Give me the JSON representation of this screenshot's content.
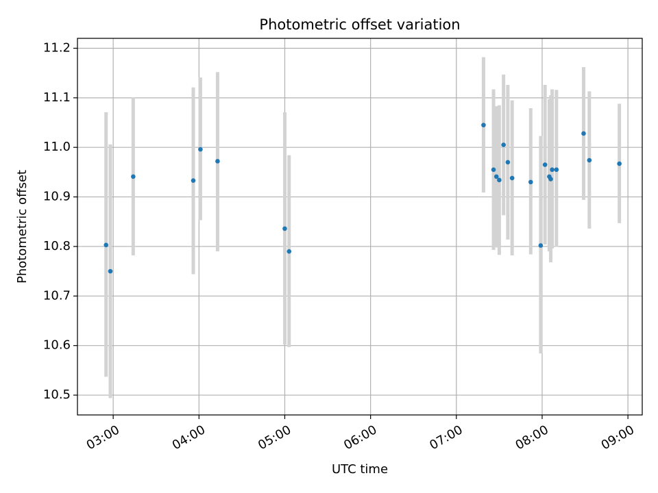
{
  "chart_data": {
    "type": "scatter",
    "title": "Photometric offset variation",
    "xlabel": "UTC time",
    "ylabel": "Photometric offset",
    "x_unit": "UTC time (HH:MM)",
    "xlim": [
      "02:35",
      "09:10"
    ],
    "ylim": [
      10.46,
      11.22
    ],
    "xticks": [
      "03:00",
      "04:00",
      "05:00",
      "06:00",
      "07:00",
      "08:00",
      "09:00"
    ],
    "yticks": [
      "10.5",
      "10.6",
      "10.7",
      "10.8",
      "10.9",
      "11.0",
      "11.1",
      "11.2"
    ],
    "grid": true,
    "point_color": "#1f77b4",
    "errorbar_color": "#d3d3d3",
    "points": [
      {
        "x": "02:55",
        "y": 10.803,
        "ymin": 10.537,
        "ymax": 11.071
      },
      {
        "x": "02:58",
        "y": 10.75,
        "ymin": 10.494,
        "ymax": 11.006
      },
      {
        "x": "03:14",
        "y": 10.941,
        "ymin": 10.782,
        "ymax": 11.101
      },
      {
        "x": "03:56",
        "y": 10.933,
        "ymin": 10.744,
        "ymax": 11.121
      },
      {
        "x": "04:01",
        "y": 10.996,
        "ymin": 10.853,
        "ymax": 11.141
      },
      {
        "x": "04:13",
        "y": 10.972,
        "ymin": 10.79,
        "ymax": 11.152
      },
      {
        "x": "05:00",
        "y": 10.836,
        "ymin": 10.602,
        "ymax": 11.071
      },
      {
        "x": "05:03",
        "y": 10.79,
        "ymin": 10.597,
        "ymax": 10.984
      },
      {
        "x": "07:19",
        "y": 11.045,
        "ymin": 10.909,
        "ymax": 11.182
      },
      {
        "x": "07:26",
        "y": 10.955,
        "ymin": 10.793,
        "ymax": 11.117
      },
      {
        "x": "07:28",
        "y": 10.941,
        "ymin": 10.798,
        "ymax": 11.083
      },
      {
        "x": "07:30",
        "y": 10.934,
        "ymin": 10.783,
        "ymax": 11.085
      },
      {
        "x": "07:33",
        "y": 11.005,
        "ymin": 10.863,
        "ymax": 11.147
      },
      {
        "x": "07:36",
        "y": 10.97,
        "ymin": 10.814,
        "ymax": 11.126
      },
      {
        "x": "07:39",
        "y": 10.938,
        "ymin": 10.782,
        "ymax": 11.095
      },
      {
        "x": "07:52",
        "y": 10.93,
        "ymin": 10.784,
        "ymax": 11.079
      },
      {
        "x": "07:59",
        "y": 10.802,
        "ymin": 10.584,
        "ymax": 11.023
      },
      {
        "x": "08:02",
        "y": 10.965,
        "ymin": 10.804,
        "ymax": 11.126
      },
      {
        "x": "08:05",
        "y": 10.941,
        "ymin": 10.79,
        "ymax": 11.097
      },
      {
        "x": "08:06",
        "y": 10.936,
        "ymin": 10.768,
        "ymax": 11.105
      },
      {
        "x": "08:07",
        "y": 10.955,
        "ymin": 10.796,
        "ymax": 11.117
      },
      {
        "x": "08:10",
        "y": 10.955,
        "ymin": 10.799,
        "ymax": 11.116
      },
      {
        "x": "08:29",
        "y": 11.028,
        "ymin": 10.894,
        "ymax": 11.162
      },
      {
        "x": "08:33",
        "y": 10.974,
        "ymin": 10.836,
        "ymax": 11.113
      },
      {
        "x": "08:54",
        "y": 10.967,
        "ymin": 10.847,
        "ymax": 11.088
      }
    ]
  }
}
